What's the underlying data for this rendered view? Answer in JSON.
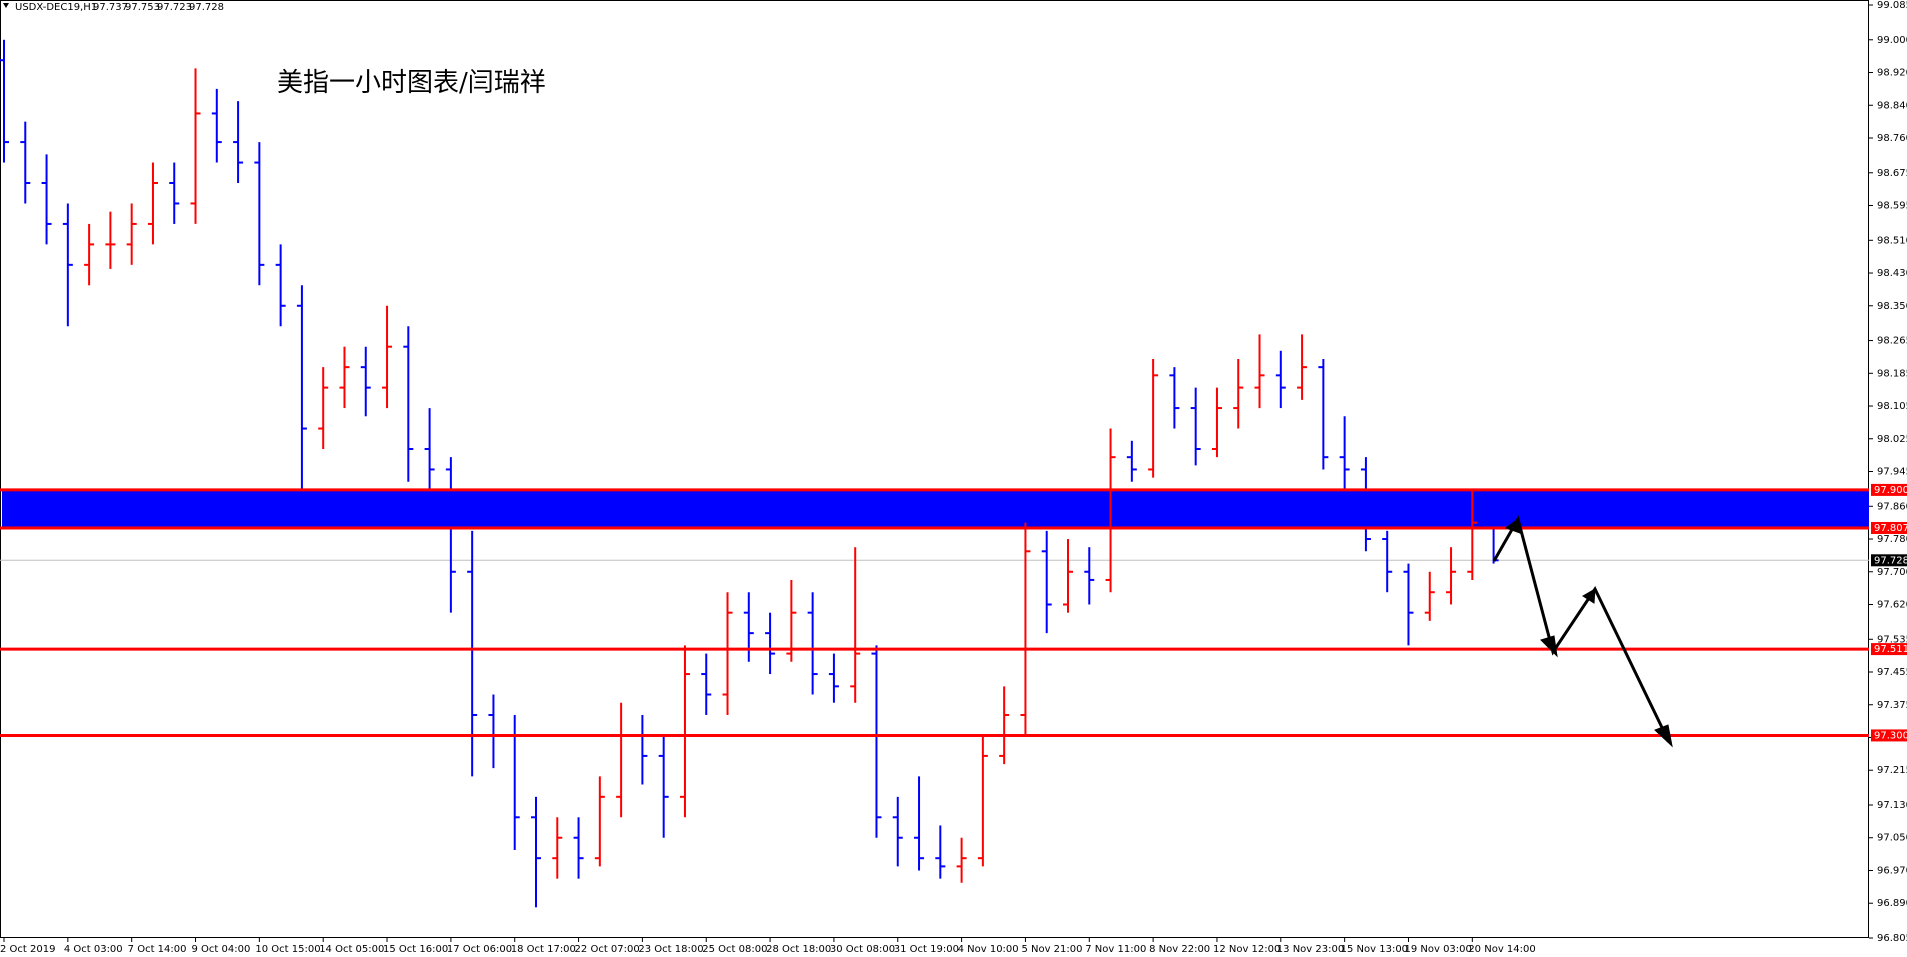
{
  "chart_data": {
    "type": "ohlc",
    "symbol": "USDX-DEC19,H1",
    "header_ohlc": [
      97.737,
      97.753,
      97.723,
      97.728
    ],
    "title": "美指一小时图表/闫瑞祥",
    "up_color": "#ff0000",
    "down_color": "#0000ff",
    "categories": [
      "2 Oct 2019",
      null,
      null,
      "4 Oct 03:00",
      null,
      null,
      "7 Oct 14:00",
      null,
      null,
      "9 Oct 04:00",
      null,
      null,
      "10 Oct 15:00",
      null,
      null,
      "14 Oct 05:00",
      null,
      null,
      "15 Oct 16:00",
      null,
      null,
      "17 Oct 06:00",
      null,
      null,
      "18 Oct 17:00",
      null,
      null,
      "22 Oct 07:00",
      null,
      null,
      "23 Oct 18:00",
      null,
      null,
      "25 Oct 08:00",
      null,
      null,
      "28 Oct 18:00",
      null,
      null,
      "30 Oct 08:00",
      null,
      null,
      "31 Oct 19:00",
      null,
      null,
      "4 Nov 10:00",
      null,
      null,
      "5 Nov 21:00",
      null,
      null,
      "7 Nov 11:00",
      null,
      null,
      "8 Nov 22:00",
      null,
      null,
      "12 Nov 12:00",
      null,
      null,
      "13 Nov 23:00",
      null,
      null,
      "15 Nov 13:00",
      null,
      null,
      "19 Nov 03:00",
      null,
      null,
      "20 Nov 14:00",
      null
    ],
    "open": [
      98.95,
      98.75,
      98.65,
      98.55,
      98.45,
      98.5,
      98.5,
      98.55,
      98.65,
      98.6,
      98.82,
      98.75,
      98.7,
      98.45,
      98.35,
      98.05,
      98.15,
      98.2,
      98.15,
      98.25,
      98.0,
      97.95,
      97.7,
      97.35,
      97.3,
      97.1,
      97.0,
      97.05,
      97.0,
      97.15,
      97.3,
      97.25,
      97.15,
      97.45,
      97.4,
      97.6,
      97.55,
      97.5,
      97.6,
      97.45,
      97.42,
      97.5,
      97.1,
      97.05,
      97.0,
      96.98,
      97.0,
      97.25,
      97.35,
      97.75,
      97.62,
      97.7,
      97.68,
      97.98,
      97.95,
      98.18,
      98.1,
      98.0,
      98.1,
      98.15,
      98.18,
      98.15,
      98.2,
      97.98,
      97.95,
      97.78,
      97.7,
      97.6,
      97.65,
      97.7,
      97.82
    ],
    "high": [
      99.0,
      98.8,
      98.72,
      98.6,
      98.55,
      98.58,
      98.6,
      98.7,
      98.7,
      98.93,
      98.88,
      98.85,
      98.75,
      98.5,
      98.4,
      98.2,
      98.25,
      98.25,
      98.35,
      98.3,
      98.1,
      97.98,
      97.8,
      97.4,
      97.35,
      97.15,
      97.1,
      97.1,
      97.2,
      97.38,
      97.35,
      97.3,
      97.52,
      97.5,
      97.65,
      97.65,
      97.6,
      97.68,
      97.65,
      97.5,
      97.76,
      97.52,
      97.15,
      97.2,
      97.08,
      97.05,
      97.3,
      97.42,
      97.82,
      97.8,
      97.78,
      97.76,
      98.05,
      98.02,
      98.22,
      98.2,
      98.15,
      98.15,
      98.22,
      98.28,
      98.24,
      98.28,
      98.22,
      98.08,
      97.98,
      97.8,
      97.72,
      97.7,
      97.76,
      97.9,
      97.85
    ],
    "low": [
      98.7,
      98.6,
      98.5,
      98.3,
      98.4,
      98.44,
      98.45,
      98.5,
      98.55,
      98.55,
      98.7,
      98.65,
      98.4,
      98.3,
      97.88,
      98.0,
      98.1,
      98.08,
      98.1,
      97.92,
      97.9,
      97.6,
      97.2,
      97.22,
      97.02,
      96.88,
      96.95,
      96.95,
      96.98,
      97.1,
      97.18,
      97.05,
      97.1,
      97.35,
      97.35,
      97.48,
      97.45,
      97.48,
      97.4,
      97.38,
      97.38,
      97.05,
      96.98,
      96.97,
      96.95,
      96.94,
      96.98,
      97.23,
      97.3,
      97.55,
      97.6,
      97.62,
      97.65,
      97.92,
      97.93,
      98.05,
      97.96,
      97.98,
      98.05,
      98.1,
      98.1,
      98.12,
      97.95,
      97.9,
      97.75,
      97.65,
      97.52,
      97.58,
      97.62,
      97.68,
      97.72
    ],
    "close": [
      98.75,
      98.65,
      98.55,
      98.45,
      98.5,
      98.5,
      98.55,
      98.65,
      98.6,
      98.82,
      98.75,
      98.7,
      98.45,
      98.35,
      98.05,
      98.15,
      98.2,
      98.15,
      98.25,
      98.0,
      97.95,
      97.7,
      97.35,
      97.3,
      97.1,
      97.0,
      97.05,
      97.0,
      97.15,
      97.3,
      97.25,
      97.15,
      97.45,
      97.4,
      97.6,
      97.55,
      97.5,
      97.6,
      97.45,
      97.42,
      97.5,
      97.1,
      97.05,
      97.0,
      96.98,
      97.0,
      97.25,
      97.35,
      97.75,
      97.62,
      97.7,
      97.68,
      97.98,
      97.95,
      98.18,
      98.1,
      98.0,
      98.1,
      98.15,
      98.18,
      98.15,
      98.2,
      97.98,
      97.95,
      97.78,
      97.7,
      97.6,
      97.65,
      97.7,
      97.82,
      97.728
    ],
    "ylim": [
      96.805,
      99.085
    ],
    "yticks": [
      99.085,
      {
        "value": 99.0,
        "label": "99.000"
      },
      {
        "value": 98.92,
        "label": "98.920"
      },
      {
        "value": 98.84,
        "label": "98.840"
      },
      {
        "value": 98.76,
        "label": "98.760"
      },
      98.675,
      98.595,
      {
        "value": 98.51,
        "label": "98.510"
      },
      {
        "value": 98.43,
        "label": "98.430"
      },
      {
        "value": 98.35,
        "label": "98.350"
      },
      98.265,
      98.185,
      98.105,
      98.025,
      97.945,
      {
        "value": 97.86,
        "label": "97.860"
      },
      {
        "value": 97.78,
        "label": "97.780"
      },
      {
        "value": 97.7,
        "label": "97.700"
      },
      {
        "value": 97.62,
        "label": "97.620"
      },
      97.535,
      97.455,
      97.375,
      97.295,
      97.215,
      {
        "value": 97.13,
        "label": "97.130"
      },
      {
        "value": 97.05,
        "label": "97.050"
      },
      {
        "value": 96.97,
        "label": "96.970"
      },
      {
        "value": 96.89,
        "label": "96.890"
      },
      96.805
    ],
    "zone": {
      "from": 97.807,
      "to": 97.9,
      "color": "#0000ff"
    },
    "levels": [
      {
        "value": 97.9,
        "label": "97.900"
      },
      {
        "value": 97.807,
        "label": "97.807"
      },
      {
        "value": 97.511,
        "label": "97.511"
      },
      {
        "value": 97.3,
        "label": "97.300"
      }
    ],
    "level_color": "#ff0000",
    "current_price": {
      "value": 97.728,
      "label": "97.728"
    }
  }
}
